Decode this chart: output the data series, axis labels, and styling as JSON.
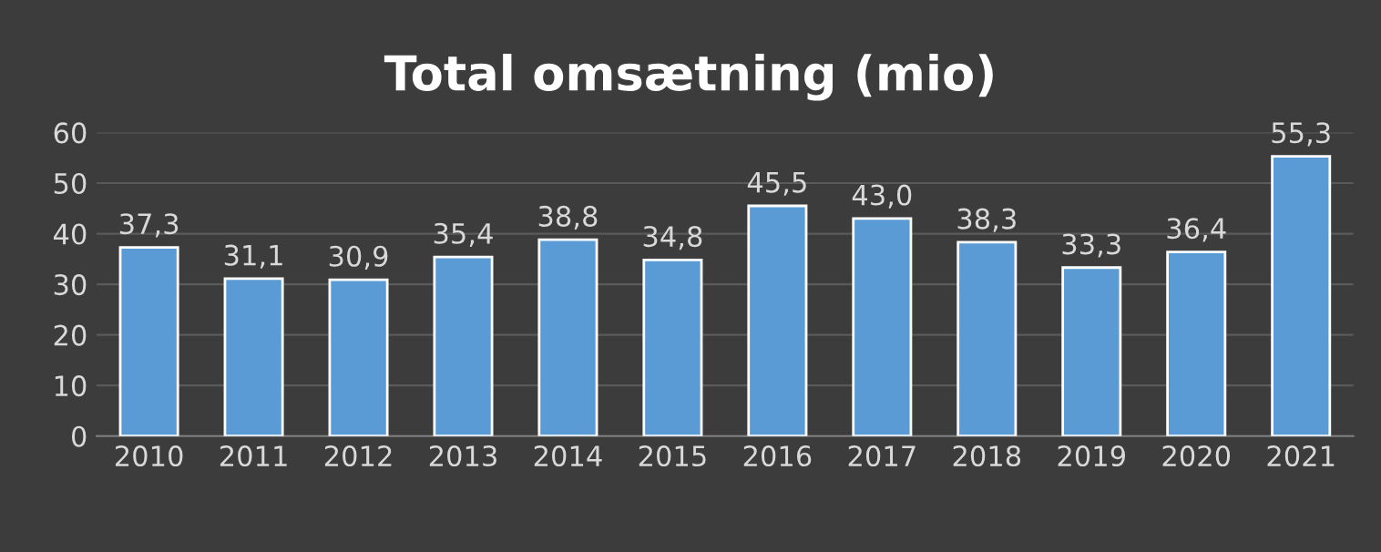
{
  "chart_data": {
    "type": "bar",
    "title": "Total omsætning (mio)",
    "categories": [
      "2010",
      "2011",
      "2012",
      "2013",
      "2014",
      "2015",
      "2016",
      "2017",
      "2018",
      "2019",
      "2020",
      "2021"
    ],
    "values": [
      37.3,
      31.1,
      30.9,
      35.4,
      38.8,
      34.8,
      45.5,
      43.0,
      38.3,
      33.3,
      36.4,
      55.3
    ],
    "value_labels": [
      "37,3",
      "31,1",
      "30,9",
      "35,4",
      "38,8",
      "34,8",
      "45,5",
      "43,0",
      "38,3",
      "33,3",
      "36,4",
      "55,3"
    ],
    "color": "#5b9bd5",
    "ylim": [
      0,
      60
    ],
    "yticks": [
      0,
      10,
      20,
      30,
      40,
      50,
      60
    ],
    "grid": "y",
    "legend": false
  }
}
